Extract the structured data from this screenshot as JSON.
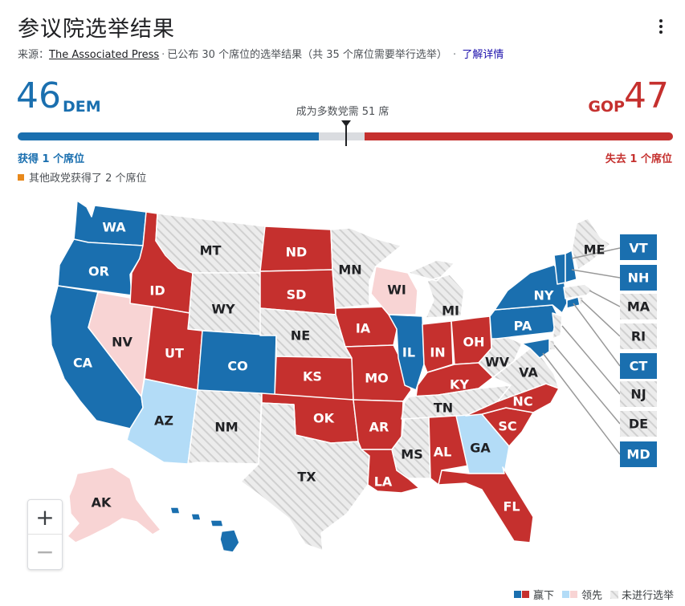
{
  "header": {
    "title": "参议院选举结果",
    "source_prefix": "来源：",
    "source_name": "The Associated Press",
    "results_text": "已公布 30 个席位的选举结果（共 35 个席位需要举行选举）",
    "learn_more": "了解详情"
  },
  "tally": {
    "dem_count": "46",
    "dem_label": "DEM",
    "gop_count": "47",
    "gop_label": "GOP",
    "majority_text": "成为多数党需 51 席",
    "dem_seats": 46,
    "gop_seats": 47,
    "total_seats": 100,
    "majority_needed": 51,
    "dem_change": "获得 1 个席位",
    "gop_change": "失去 1 个席位",
    "other_note": "其他政党获得了 2 个席位"
  },
  "colors": {
    "dem_won": "#1a6faf",
    "gop_won": "#c5302e",
    "dem_leading": "#b3dcf7",
    "gop_leading": "#f8d4d4",
    "no_race": "#e6e6e6",
    "other": "#e8891c"
  },
  "states": {
    "WA": {
      "status": "dem_won"
    },
    "OR": {
      "status": "dem_won"
    },
    "CA": {
      "status": "dem_won"
    },
    "NV": {
      "status": "gop_leading"
    },
    "ID": {
      "status": "gop_won"
    },
    "MT": {
      "status": "no_race"
    },
    "WY": {
      "status": "no_race"
    },
    "UT": {
      "status": "gop_won"
    },
    "CO": {
      "status": "dem_won"
    },
    "AZ": {
      "status": "dem_leading"
    },
    "NM": {
      "status": "no_race"
    },
    "ND": {
      "status": "gop_won"
    },
    "SD": {
      "status": "gop_won"
    },
    "NE": {
      "status": "no_race"
    },
    "KS": {
      "status": "gop_won"
    },
    "OK": {
      "status": "gop_won"
    },
    "TX": {
      "status": "no_race"
    },
    "MN": {
      "status": "no_race"
    },
    "IA": {
      "status": "gop_won"
    },
    "MO": {
      "status": "gop_won"
    },
    "AR": {
      "status": "gop_won"
    },
    "LA": {
      "status": "gop_won"
    },
    "WI": {
      "status": "gop_leading"
    },
    "IL": {
      "status": "dem_won"
    },
    "MI": {
      "status": "no_race"
    },
    "IN": {
      "status": "gop_won"
    },
    "OH": {
      "status": "gop_won"
    },
    "KY": {
      "status": "gop_won"
    },
    "TN": {
      "status": "no_race"
    },
    "MS": {
      "status": "no_race"
    },
    "AL": {
      "status": "gop_won"
    },
    "GA": {
      "status": "dem_leading"
    },
    "FL": {
      "status": "gop_won"
    },
    "SC": {
      "status": "gop_won"
    },
    "NC": {
      "status": "gop_won"
    },
    "VA": {
      "status": "no_race"
    },
    "WV": {
      "status": "no_race"
    },
    "PA": {
      "status": "dem_won"
    },
    "NY": {
      "status": "dem_won"
    },
    "ME": {
      "status": "no_race"
    },
    "AK": {
      "status": "gop_leading"
    },
    "HI": {
      "status": "dem_won"
    },
    "VT": {
      "status": "dem_won"
    },
    "NH": {
      "status": "dem_won"
    },
    "MA": {
      "status": "no_race"
    },
    "RI": {
      "status": "no_race"
    },
    "CT": {
      "status": "dem_won"
    },
    "NJ": {
      "status": "no_race"
    },
    "DE": {
      "status": "no_race"
    },
    "MD": {
      "status": "dem_won"
    }
  },
  "zoom": {
    "in": "+",
    "out": "−"
  },
  "legend": {
    "won": "赢下",
    "leading": "领先",
    "no_race": "未进行选举"
  }
}
